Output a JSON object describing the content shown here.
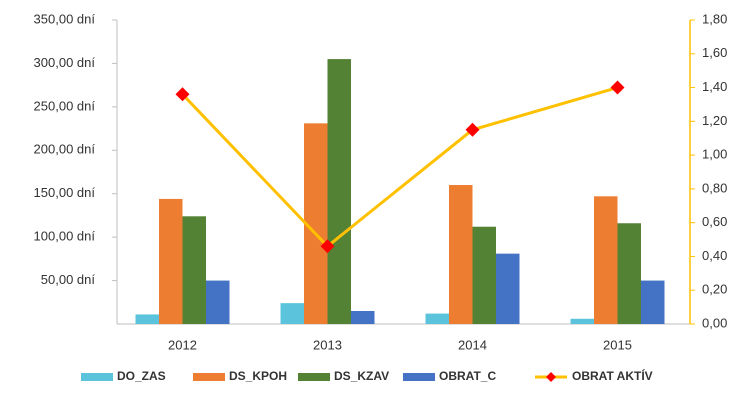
{
  "chart_data": {
    "type": "bar_line",
    "categories": [
      "2012",
      "2013",
      "2014",
      "2015"
    ],
    "series": [
      {
        "name": "DO_ZAS",
        "color": "#5bc4dc",
        "values": [
          11,
          24,
          12,
          6
        ]
      },
      {
        "name": "DS_KPOH",
        "color": "#ed7d31",
        "values": [
          144,
          231,
          160,
          147
        ]
      },
      {
        "name": "DS_KZAV",
        "color": "#548235",
        "values": [
          124,
          305,
          112,
          116
        ]
      },
      {
        "name": "OBRAT_C",
        "color": "#4472c4",
        "values": [
          50,
          15,
          81,
          50
        ]
      },
      {
        "name": "OBRAT AKTÍV",
        "color": "#ffc000",
        "marker_color": "#ff0000",
        "axis": "y2",
        "values": [
          1.36,
          0.46,
          1.15,
          1.4
        ]
      }
    ],
    "ylim": [
      0,
      350
    ],
    "yticks": [
      {
        "value": 50,
        "label": "50,00 dní"
      },
      {
        "value": 100,
        "label": "100,00 dní"
      },
      {
        "value": 150,
        "label": "150,00 dní"
      },
      {
        "value": 200,
        "label": "200,00 dní"
      },
      {
        "value": 250,
        "label": "250,00 dní"
      },
      {
        "value": 300,
        "label": "300,00 dní"
      },
      {
        "value": 350,
        "label": "350,00 dní"
      }
    ],
    "y2lim": [
      0,
      1.8
    ],
    "y2ticks": [
      {
        "value": 0,
        "label": "0,00"
      },
      {
        "value": 0.2,
        "label": "0,20"
      },
      {
        "value": 0.4,
        "label": "0,40"
      },
      {
        "value": 0.6,
        "label": "0,60"
      },
      {
        "value": 0.8,
        "label": "0,80"
      },
      {
        "value": 1.0,
        "label": "1,00"
      },
      {
        "value": 1.2,
        "label": "1,20"
      },
      {
        "value": 1.4,
        "label": "1,40"
      },
      {
        "value": 1.6,
        "label": "1,60"
      },
      {
        "value": 1.8,
        "label": "1,80"
      }
    ],
    "legend": "bottom"
  }
}
